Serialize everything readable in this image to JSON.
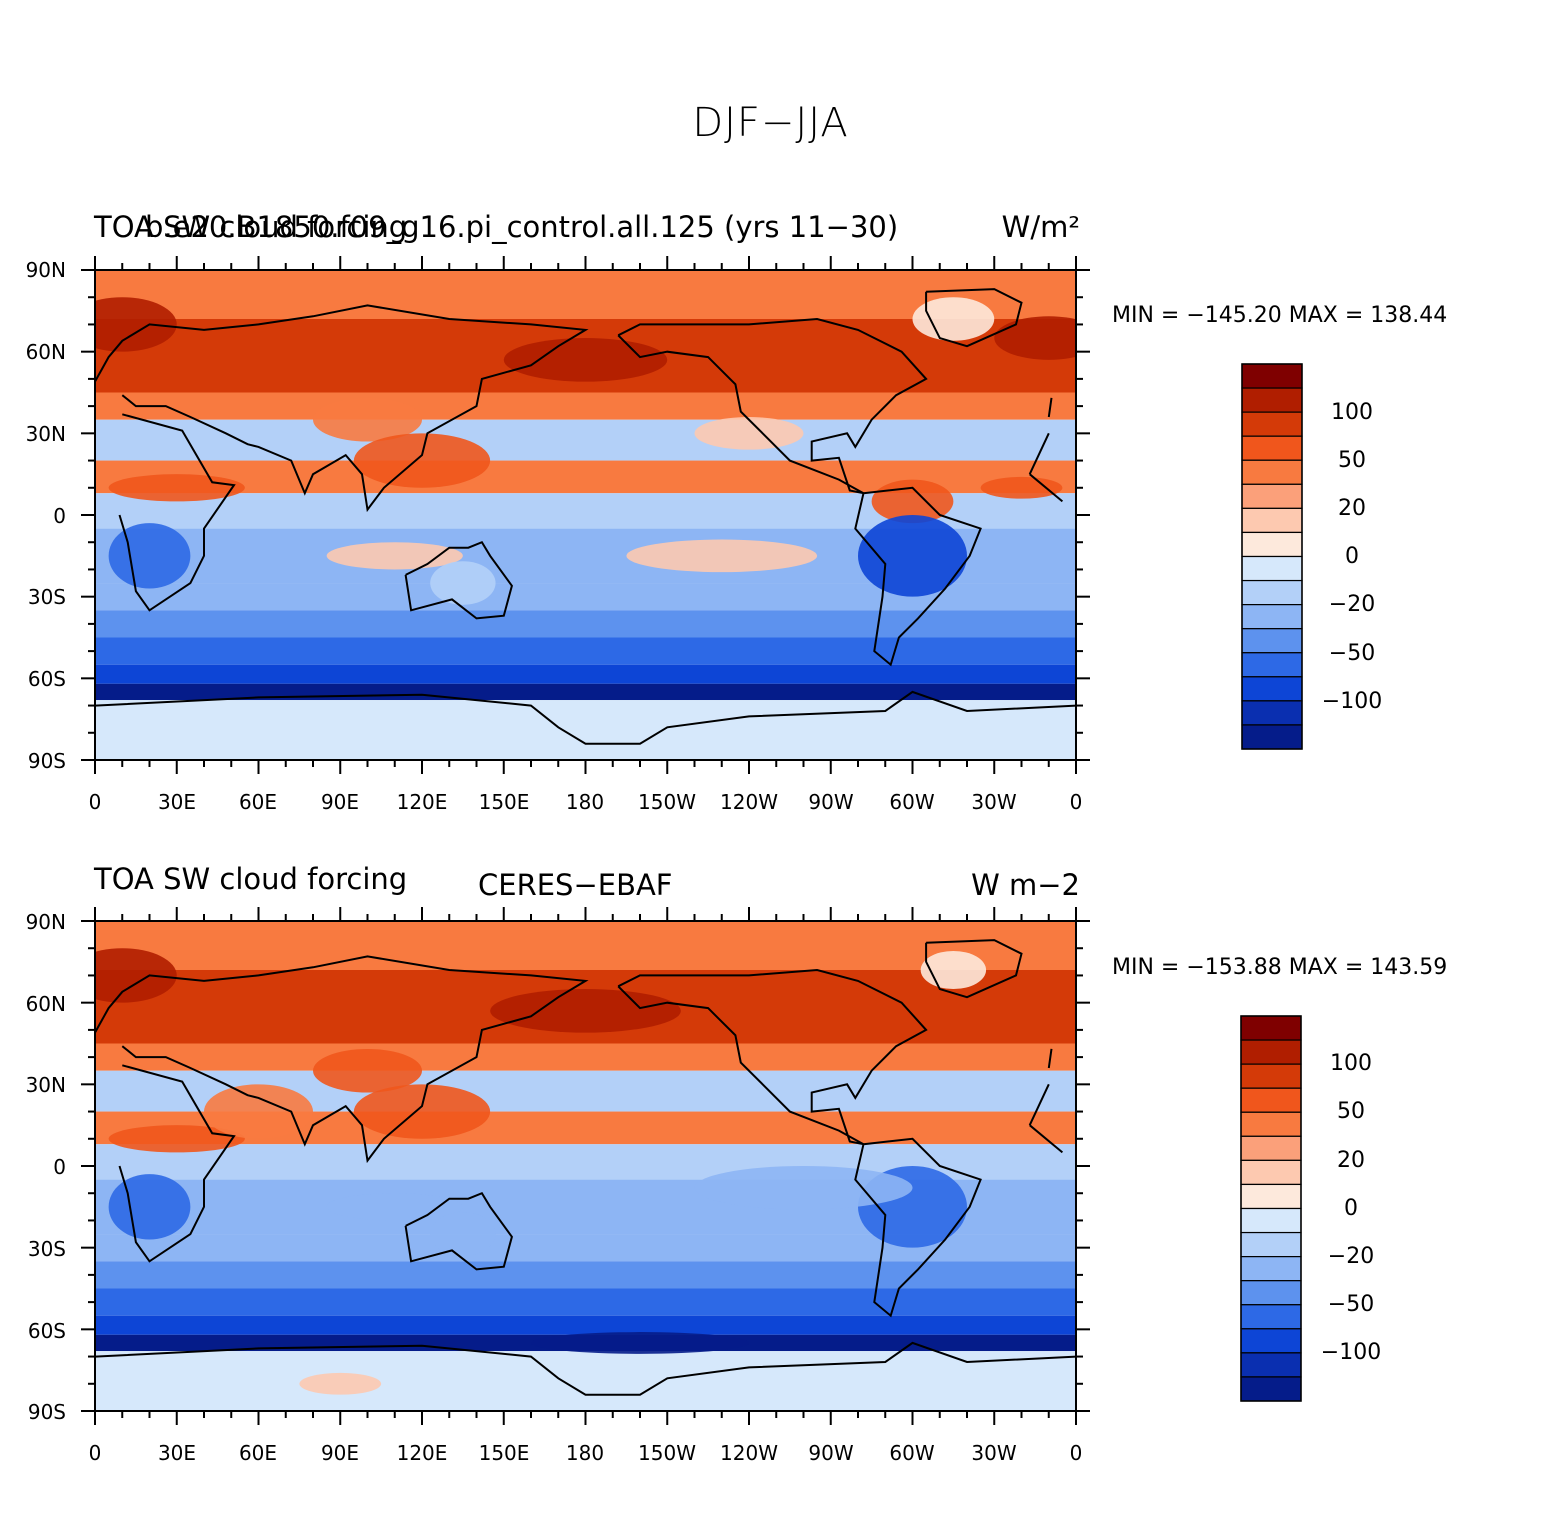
{
  "figure": {
    "title": "DJF−JJA",
    "x_ticks": [
      "0",
      "30E",
      "60E",
      "90E",
      "120E",
      "150E",
      "180",
      "150W",
      "120W",
      "90W",
      "60W",
      "30W",
      "0"
    ],
    "y_ticks": [
      "90N",
      "60N",
      "30N",
      "0",
      "30S",
      "60S",
      "90S"
    ],
    "colorbar_labels": [
      "100",
      "50",
      "20",
      "0",
      "−20",
      "−50",
      "−100"
    ],
    "colorbar_colors": [
      "#7f0000",
      "#b01e00",
      "#d43a08",
      "#f0561c",
      "#f87a40",
      "#fba07a",
      "#fdc9b0",
      "#fde9dc",
      "#d6e8fb",
      "#b3d0f8",
      "#8db5f4",
      "#5d92ee",
      "#2d69e6",
      "#0d45d6",
      "#0a2fb0",
      "#051c8a"
    ],
    "panels": [
      {
        "left_title": "TOA SW cloud forcing",
        "center_title": "b.e20.B1850.f09_g16.pi_control.all.125 (yrs 11−30)",
        "right_title": "W/m²",
        "minmax": "MIN = −145.20  MAX = 138.44"
      },
      {
        "left_title": "TOA SW cloud forcing",
        "center_title": "CERES−EBAF",
        "right_title": "W m−2",
        "minmax": "MIN = −153.88  MAX = 143.59"
      }
    ]
  }
}
